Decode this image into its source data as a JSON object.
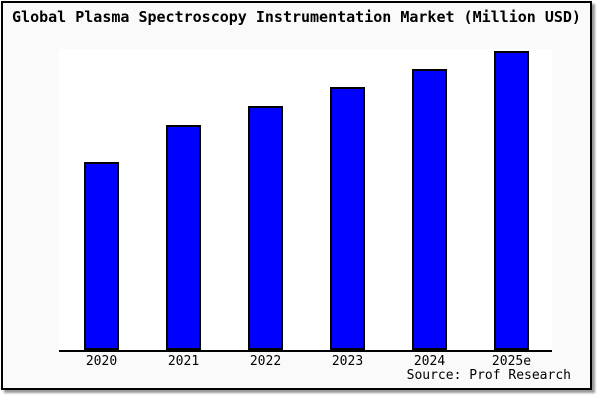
{
  "window": {
    "background": "#ffffff",
    "panel_background": "#fafafa",
    "panel_border_color": "#000000",
    "shadow_color": "#999999"
  },
  "chart_data": {
    "type": "bar",
    "title": "Global Plasma Spectroscopy Instrumentation Market (Million USD)",
    "categories": [
      "2020",
      "2021",
      "2022",
      "2023",
      "2024",
      "2025e"
    ],
    "values": [
      188,
      225,
      244,
      263,
      281,
      299
    ],
    "ylim": [
      0,
      301
    ],
    "xlabel": "",
    "ylabel": "",
    "y_axis_labels_visible": false,
    "gridlines": false,
    "legend": false,
    "bar_color": "#0000ff",
    "bar_border_color": "#000000",
    "axis_line_color": "#000000",
    "plot_background": "#ffffff"
  },
  "source": {
    "label": "Source: Prof Research"
  }
}
